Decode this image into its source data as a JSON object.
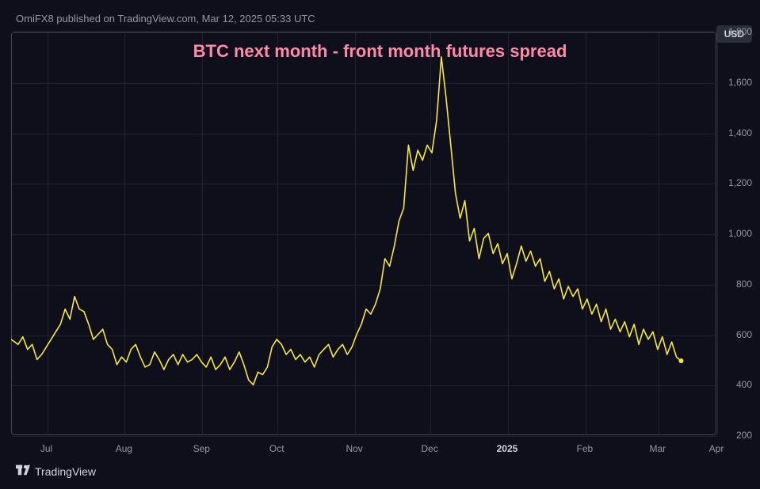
{
  "attribution": "OmiFX8 published on TradingView.com, Mar 12, 2025 05:33 UTC",
  "title": "BTC next month - front month futures spread",
  "unit_badge": "USD",
  "branding": "TradingView",
  "chart": {
    "type": "line",
    "background_color": "#0e0f1a",
    "frame_border_color": "#434651",
    "grid_color": "#1e222d",
    "line_color": "#f5e843",
    "line_width": 1.6,
    "endpoint_marker_color": "#f5e843",
    "endpoint_marker_radius": 3,
    "title_color": "#ff8aa8",
    "title_fontsize": 22,
    "tick_color": "#9598a1",
    "tick_fontsize": 12,
    "xlim": [
      0,
      300
    ],
    "ylim": [
      200,
      1800
    ],
    "y_ticks": [
      200,
      400,
      600,
      800,
      1000,
      1200,
      1400,
      1600,
      1800
    ],
    "x_ticks": [
      {
        "pos": 15,
        "label": "Jul",
        "bold": false
      },
      {
        "pos": 48,
        "label": "Aug",
        "bold": false
      },
      {
        "pos": 81,
        "label": "Sep",
        "bold": false
      },
      {
        "pos": 113,
        "label": "Oct",
        "bold": false
      },
      {
        "pos": 146,
        "label": "Nov",
        "bold": false
      },
      {
        "pos": 178,
        "label": "Dec",
        "bold": false
      },
      {
        "pos": 211,
        "label": "2025",
        "bold": true
      },
      {
        "pos": 244,
        "label": "Feb",
        "bold": false
      },
      {
        "pos": 275,
        "label": "Mar",
        "bold": false
      },
      {
        "pos": 300,
        "label": "Apr",
        "bold": false
      }
    ],
    "series": [
      [
        0,
        580
      ],
      [
        3,
        560
      ],
      [
        5,
        590
      ],
      [
        7,
        540
      ],
      [
        9,
        560
      ],
      [
        11,
        500
      ],
      [
        13,
        520
      ],
      [
        15,
        550
      ],
      [
        17,
        580
      ],
      [
        19,
        610
      ],
      [
        21,
        640
      ],
      [
        23,
        700
      ],
      [
        25,
        660
      ],
      [
        27,
        750
      ],
      [
        29,
        700
      ],
      [
        31,
        690
      ],
      [
        33,
        640
      ],
      [
        35,
        580
      ],
      [
        37,
        600
      ],
      [
        39,
        620
      ],
      [
        41,
        560
      ],
      [
        43,
        540
      ],
      [
        45,
        480
      ],
      [
        47,
        510
      ],
      [
        49,
        490
      ],
      [
        51,
        540
      ],
      [
        53,
        560
      ],
      [
        55,
        510
      ],
      [
        57,
        470
      ],
      [
        59,
        480
      ],
      [
        61,
        530
      ],
      [
        63,
        500
      ],
      [
        65,
        460
      ],
      [
        67,
        500
      ],
      [
        69,
        520
      ],
      [
        71,
        480
      ],
      [
        73,
        520
      ],
      [
        75,
        490
      ],
      [
        77,
        500
      ],
      [
        79,
        520
      ],
      [
        81,
        490
      ],
      [
        83,
        470
      ],
      [
        85,
        510
      ],
      [
        87,
        460
      ],
      [
        89,
        480
      ],
      [
        91,
        510
      ],
      [
        93,
        460
      ],
      [
        95,
        490
      ],
      [
        97,
        530
      ],
      [
        99,
        480
      ],
      [
        101,
        420
      ],
      [
        103,
        400
      ],
      [
        105,
        450
      ],
      [
        107,
        440
      ],
      [
        109,
        470
      ],
      [
        111,
        550
      ],
      [
        113,
        580
      ],
      [
        115,
        560
      ],
      [
        117,
        520
      ],
      [
        119,
        540
      ],
      [
        121,
        500
      ],
      [
        123,
        520
      ],
      [
        125,
        490
      ],
      [
        127,
        510
      ],
      [
        129,
        470
      ],
      [
        131,
        520
      ],
      [
        133,
        540
      ],
      [
        135,
        560
      ],
      [
        137,
        510
      ],
      [
        139,
        540
      ],
      [
        141,
        560
      ],
      [
        143,
        520
      ],
      [
        145,
        550
      ],
      [
        147,
        600
      ],
      [
        149,
        640
      ],
      [
        151,
        700
      ],
      [
        153,
        680
      ],
      [
        155,
        720
      ],
      [
        157,
        780
      ],
      [
        159,
        900
      ],
      [
        161,
        870
      ],
      [
        163,
        950
      ],
      [
        165,
        1050
      ],
      [
        167,
        1100
      ],
      [
        169,
        1350
      ],
      [
        171,
        1250
      ],
      [
        173,
        1330
      ],
      [
        175,
        1290
      ],
      [
        177,
        1350
      ],
      [
        179,
        1320
      ],
      [
        181,
        1450
      ],
      [
        183,
        1700
      ],
      [
        185,
        1540
      ],
      [
        187,
        1350
      ],
      [
        189,
        1160
      ],
      [
        191,
        1060
      ],
      [
        193,
        1130
      ],
      [
        195,
        970
      ],
      [
        197,
        1020
      ],
      [
        199,
        900
      ],
      [
        201,
        980
      ],
      [
        203,
        1000
      ],
      [
        205,
        920
      ],
      [
        207,
        960
      ],
      [
        209,
        880
      ],
      [
        211,
        920
      ],
      [
        213,
        820
      ],
      [
        215,
        880
      ],
      [
        217,
        950
      ],
      [
        219,
        890
      ],
      [
        221,
        930
      ],
      [
        223,
        870
      ],
      [
        225,
        900
      ],
      [
        227,
        810
      ],
      [
        229,
        850
      ],
      [
        231,
        780
      ],
      [
        233,
        820
      ],
      [
        235,
        740
      ],
      [
        237,
        790
      ],
      [
        239,
        750
      ],
      [
        241,
        780
      ],
      [
        243,
        700
      ],
      [
        245,
        740
      ],
      [
        247,
        680
      ],
      [
        249,
        720
      ],
      [
        251,
        650
      ],
      [
        253,
        700
      ],
      [
        255,
        620
      ],
      [
        257,
        660
      ],
      [
        259,
        610
      ],
      [
        261,
        650
      ],
      [
        263,
        590
      ],
      [
        265,
        640
      ],
      [
        267,
        560
      ],
      [
        269,
        620
      ],
      [
        271,
        580
      ],
      [
        273,
        610
      ],
      [
        275,
        540
      ],
      [
        277,
        590
      ],
      [
        279,
        520
      ],
      [
        281,
        570
      ],
      [
        283,
        510
      ],
      [
        285,
        495
      ]
    ]
  }
}
